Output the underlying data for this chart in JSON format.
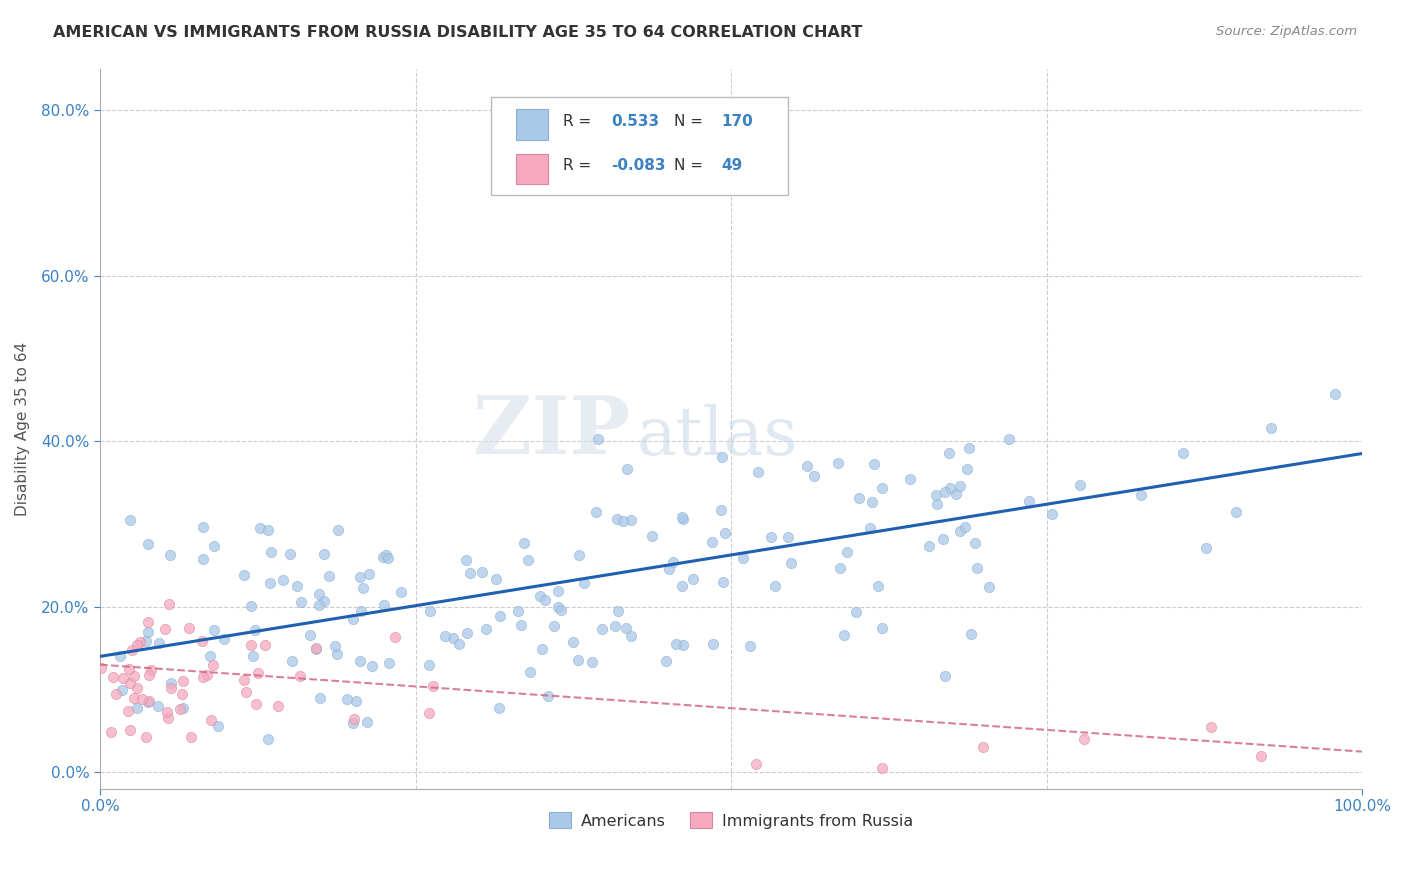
{
  "title": "AMERICAN VS IMMIGRANTS FROM RUSSIA DISABILITY AGE 35 TO 64 CORRELATION CHART",
  "source": "Source: ZipAtlas.com",
  "ylabel": "Disability Age 35 to 64",
  "xlim": [
    0,
    1.0
  ],
  "ylim": [
    -0.02,
    0.85
  ],
  "xtick_labels": [
    "0.0%",
    "100.0%"
  ],
  "ytick_labels": [
    "0.0%",
    "20.0%",
    "40.0%",
    "60.0%",
    "80.0%"
  ],
  "ytick_vals": [
    0.0,
    0.2,
    0.4,
    0.6,
    0.8
  ],
  "american_color": "#aac8e8",
  "russia_color": "#f5a8be",
  "american_line_color": "#2060b0",
  "russia_line_color": "#d06080",
  "R_american": 0.533,
  "N_american": 170,
  "R_russia": -0.083,
  "N_russia": 49,
  "background_color": "#ffffff",
  "grid_color": "#cccccc",
  "watermark_ZIP": "ZIP",
  "watermark_atlas": "atlas",
  "american_seed": 7,
  "russia_seed": 13,
  "am_line_start": 0.14,
  "am_line_end": 0.385,
  "ru_line_start": 0.13,
  "ru_line_end": 0.025
}
